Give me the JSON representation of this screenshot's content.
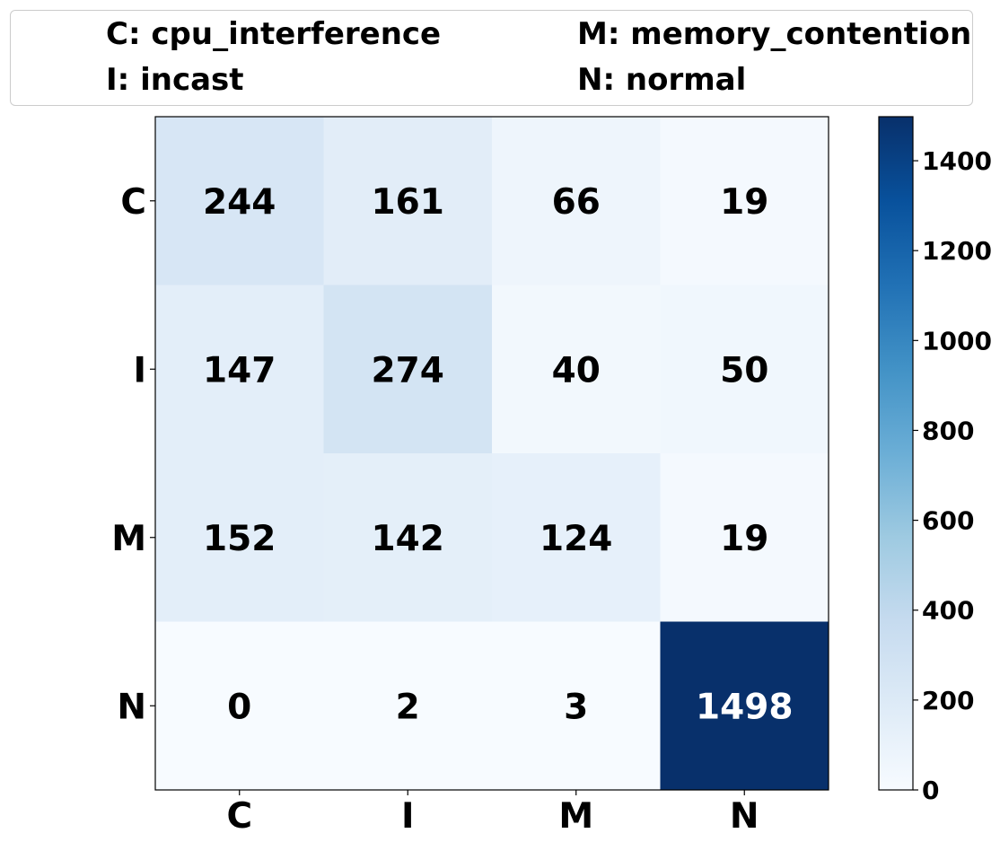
{
  "legend": {
    "entries": [
      "C: cpu_interference",
      "M: memory_contention",
      "I: incast",
      "N: normal"
    ]
  },
  "chart_data": {
    "type": "heatmap",
    "title": "",
    "xlabel": "",
    "ylabel": "",
    "x_categories": [
      "C",
      "I",
      "M",
      "N"
    ],
    "y_categories": [
      "C",
      "I",
      "M",
      "N"
    ],
    "values": [
      [
        244,
        161,
        66,
        19
      ],
      [
        147,
        274,
        40,
        50
      ],
      [
        152,
        142,
        124,
        19
      ],
      [
        0,
        2,
        3,
        1498
      ]
    ],
    "colorscale": "Blues",
    "colorbar": {
      "range": [
        0,
        1498
      ],
      "ticks": [
        0,
        200,
        400,
        600,
        800,
        1000,
        1200,
        1400
      ],
      "tick_labels": [
        "0",
        "200",
        "400",
        "600",
        "800",
        "1000",
        "1200",
        "1400"
      ]
    },
    "legend_position": "top",
    "grid": false
  }
}
